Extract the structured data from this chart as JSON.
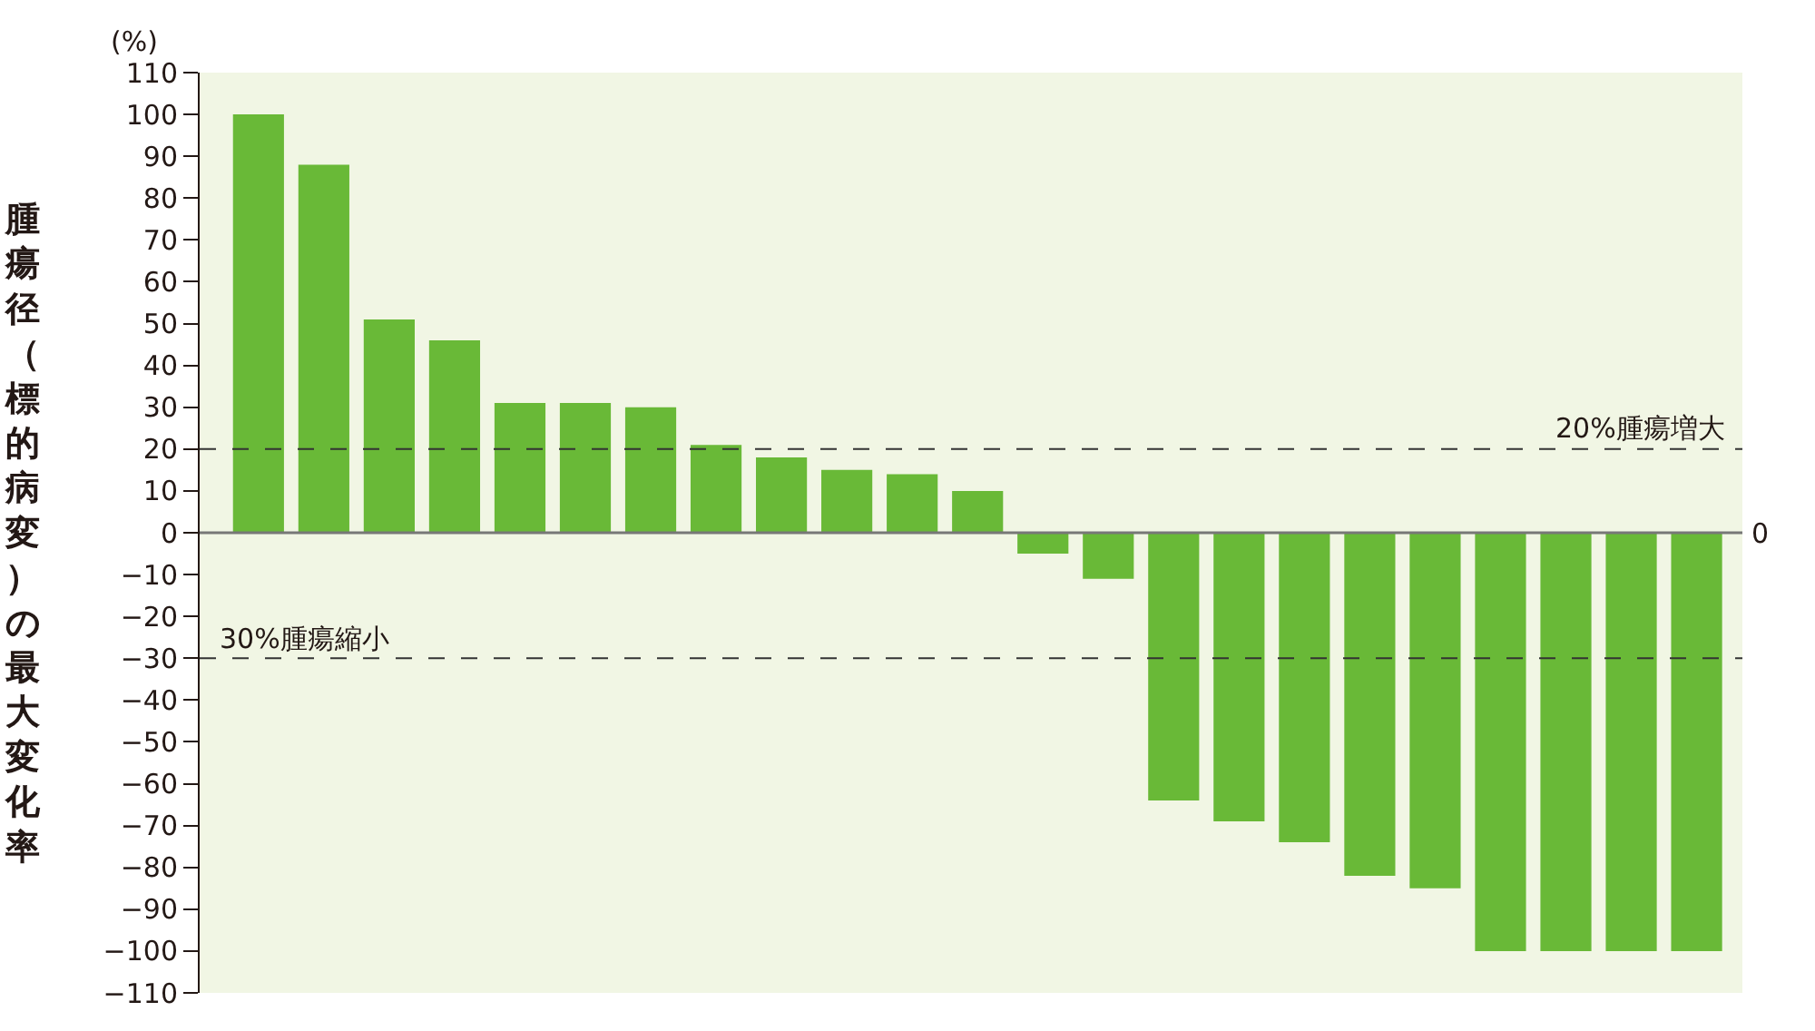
{
  "chart_data": {
    "type": "bar",
    "ylabel": "腫瘍径（標的病変）の最大変化率",
    "annotations": [
      "(%)",
      "0"
    ],
    "categories": [
      null,
      null,
      null,
      null,
      null,
      null,
      null,
      null,
      null,
      null,
      null,
      null,
      null,
      null,
      null,
      null,
      null,
      null,
      null,
      null,
      null,
      null,
      null
    ],
    "values": [
      100,
      88,
      51,
      46,
      31,
      31,
      30,
      21,
      18,
      15,
      14,
      10,
      -5,
      -11,
      -64,
      -69,
      -74,
      -82,
      -85,
      -100,
      -100,
      -100,
      -100
    ],
    "color": "#69b937",
    "ylim": [
      -110,
      110
    ],
    "yticks": [
      110,
      100,
      90,
      80,
      70,
      60,
      50,
      40,
      30,
      20,
      10,
      0,
      -10,
      -20,
      -30,
      -40,
      -50,
      -60,
      -70,
      -80,
      -90,
      -100,
      -110
    ],
    "ref_lines": [
      {
        "axis": "y",
        "value": 20,
        "label": "20%腫瘍増大",
        "color": "#333333",
        "line_style": "dashed"
      },
      {
        "axis": "y",
        "value": -30,
        "label": "30%腫瘍縮小",
        "color": "#333333",
        "line_style": "dashed"
      }
    ],
    "grid": false
  }
}
